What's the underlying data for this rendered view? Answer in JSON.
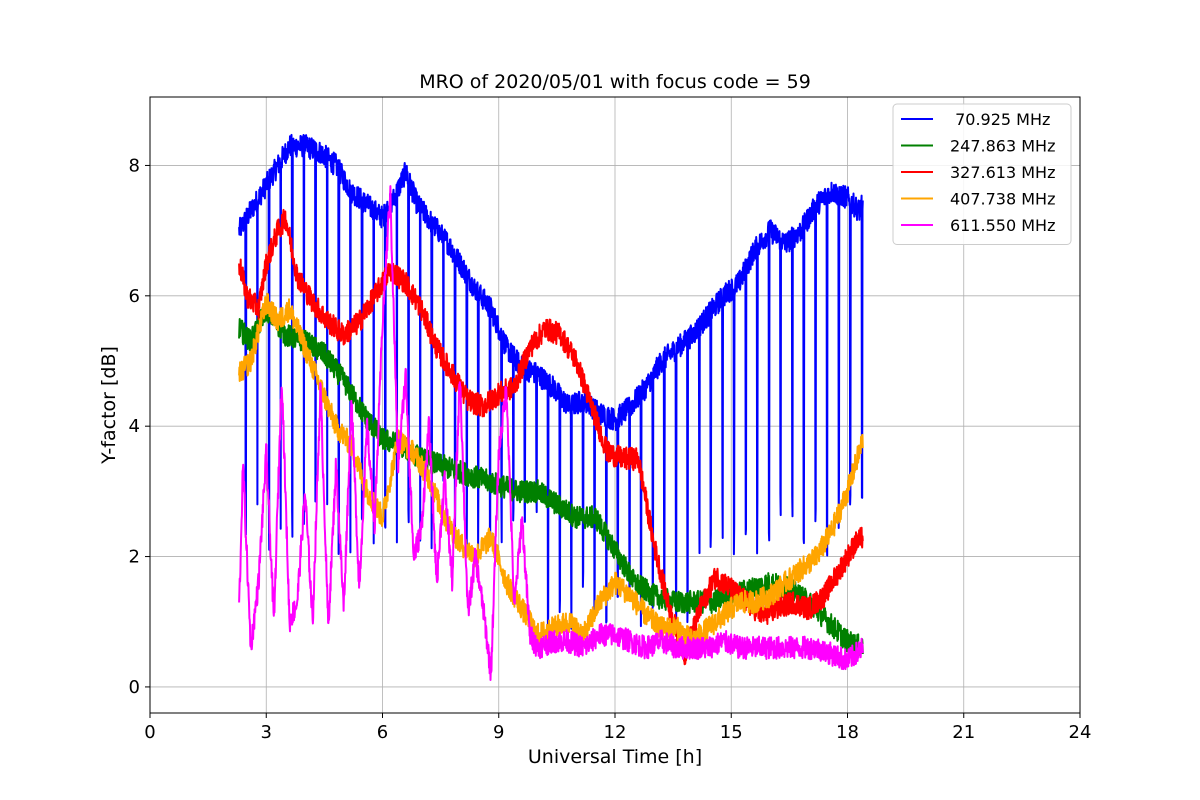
{
  "chart_data": {
    "type": "line",
    "title": "MRO of 2020/05/01 with focus code = 59",
    "xlabel": "Universal Time [h]",
    "ylabel": "Y-factor [dB]",
    "xlim": [
      0,
      24
    ],
    "ylim": [
      -0.4,
      9.05
    ],
    "xticks": [
      0,
      3,
      6,
      9,
      12,
      15,
      18,
      21,
      24
    ],
    "yticks": [
      0,
      2,
      4,
      6,
      8
    ],
    "grid": true,
    "legend_position": "top-right",
    "series": [
      {
        "name": " 70.925 MHz",
        "color": "#0000ff",
        "x": [
          2.3,
          2.6,
          3.0,
          3.3,
          3.6,
          4.0,
          4.4,
          4.8,
          5.2,
          5.6,
          6.0,
          6.3,
          6.6,
          6.9,
          7.3,
          7.7,
          8.0,
          8.4,
          8.8,
          9.2,
          9.6,
          10.0,
          10.4,
          10.8,
          11.2,
          11.6,
          12.0,
          12.4,
          12.8,
          13.2,
          13.6,
          14.0,
          14.4,
          14.8,
          15.2,
          15.6,
          16.0,
          16.4,
          16.8,
          17.2,
          17.6,
          18.0,
          18.3,
          18.4
        ],
        "y": [
          7.0,
          7.3,
          7.7,
          8.0,
          8.3,
          8.3,
          8.2,
          8.0,
          7.6,
          7.4,
          7.2,
          7.5,
          7.9,
          7.4,
          7.1,
          6.8,
          6.5,
          6.1,
          5.8,
          5.2,
          4.9,
          4.8,
          4.6,
          4.3,
          4.4,
          4.2,
          4.1,
          4.3,
          4.6,
          5.0,
          5.2,
          5.4,
          5.7,
          6.0,
          6.2,
          6.7,
          7.0,
          6.8,
          7.0,
          7.4,
          7.6,
          7.5,
          7.3,
          7.4
        ],
        "dips_to": 2.0
      },
      {
        "name": "247.863 MHz",
        "color": "#008000",
        "x": [
          2.3,
          2.6,
          3.0,
          3.5,
          4.0,
          4.5,
          5.0,
          5.5,
          6.0,
          6.5,
          7.0,
          7.5,
          8.0,
          8.5,
          9.0,
          9.5,
          10.0,
          10.5,
          11.0,
          11.5,
          12.0,
          12.5,
          13.0,
          13.5,
          14.0,
          14.5,
          15.0,
          15.5,
          16.0,
          16.5,
          17.0,
          17.5,
          18.0,
          18.4
        ],
        "y": [
          5.5,
          5.3,
          5.8,
          5.4,
          5.3,
          5.1,
          4.7,
          4.2,
          3.8,
          3.7,
          3.5,
          3.4,
          3.3,
          3.2,
          3.1,
          3.0,
          3.0,
          2.8,
          2.6,
          2.6,
          2.1,
          1.6,
          1.4,
          1.3,
          1.3,
          1.3,
          1.4,
          1.5,
          1.6,
          1.5,
          1.3,
          1.0,
          0.7,
          0.6
        ]
      },
      {
        "name": "327.613 MHz",
        "color": "#ff0000",
        "x": [
          2.3,
          2.5,
          2.8,
          3.0,
          3.3,
          3.5,
          3.8,
          4.2,
          4.6,
          5.0,
          5.4,
          5.8,
          6.2,
          6.6,
          7.0,
          7.4,
          7.8,
          8.2,
          8.6,
          9.0,
          9.4,
          9.8,
          10.2,
          10.6,
          11.0,
          11.4,
          11.8,
          12.2,
          12.6,
          13.0,
          13.4,
          13.8,
          14.2,
          14.6,
          15.0,
          15.4,
          15.8,
          16.2,
          16.6,
          17.0,
          17.4,
          17.8,
          18.2,
          18.4
        ],
        "y": [
          6.5,
          6.0,
          5.8,
          6.5,
          7.0,
          7.2,
          6.3,
          5.9,
          5.6,
          5.4,
          5.6,
          6.0,
          6.4,
          6.2,
          5.8,
          5.2,
          4.8,
          4.4,
          4.3,
          4.5,
          4.6,
          5.2,
          5.5,
          5.4,
          5.0,
          4.3,
          3.6,
          3.5,
          3.5,
          2.2,
          1.2,
          0.5,
          1.2,
          1.7,
          1.5,
          1.3,
          1.1,
          1.2,
          1.3,
          1.2,
          1.4,
          1.8,
          2.2,
          2.3
        ]
      },
      {
        "name": "407.738 MHz",
        "color": "#ffa500",
        "x": [
          2.3,
          2.6,
          3.0,
          3.3,
          3.6,
          4.0,
          4.4,
          4.8,
          5.2,
          5.6,
          6.0,
          6.4,
          6.8,
          7.2,
          7.6,
          8.0,
          8.4,
          8.8,
          9.2,
          9.6,
          10.0,
          10.4,
          10.8,
          11.2,
          11.6,
          12.0,
          12.4,
          12.8,
          13.2,
          13.6,
          14.0,
          14.4,
          14.8,
          15.2,
          15.6,
          16.0,
          16.4,
          16.8,
          17.2,
          17.6,
          18.0,
          18.3,
          18.4
        ],
        "y": [
          4.8,
          5.0,
          5.9,
          5.6,
          5.8,
          5.2,
          4.6,
          4.0,
          3.7,
          3.0,
          2.6,
          3.8,
          3.6,
          3.2,
          2.6,
          2.2,
          2.0,
          2.3,
          1.6,
          1.2,
          0.8,
          0.9,
          1.0,
          0.8,
          1.3,
          1.6,
          1.4,
          1.1,
          0.9,
          0.9,
          0.7,
          0.9,
          1.1,
          1.3,
          1.3,
          1.4,
          1.6,
          1.8,
          2.0,
          2.4,
          3.0,
          3.6,
          3.8
        ]
      },
      {
        "name": "611.550 MHz",
        "color": "#ff00ff",
        "x": [
          2.3,
          2.4,
          2.6,
          2.8,
          3.0,
          3.2,
          3.4,
          3.6,
          3.8,
          4.0,
          4.2,
          4.4,
          4.6,
          4.8,
          5.0,
          5.2,
          5.4,
          5.6,
          5.8,
          6.0,
          6.2,
          6.4,
          6.6,
          6.8,
          7.0,
          7.2,
          7.4,
          7.6,
          7.8,
          8.0,
          8.2,
          8.4,
          8.6,
          8.8,
          9.0,
          9.2,
          9.4,
          9.6,
          9.8,
          10.0,
          10.4,
          10.8,
          11.2,
          11.6,
          12.0,
          12.4,
          12.8,
          13.2,
          13.6,
          14.0,
          14.4,
          14.8,
          15.2,
          15.6,
          16.0,
          16.4,
          16.8,
          17.2,
          17.6,
          18.0,
          18.4
        ],
        "y": [
          1.2,
          3.4,
          0.6,
          1.6,
          3.6,
          1.0,
          4.8,
          1.0,
          1.3,
          3.0,
          1.0,
          4.6,
          0.9,
          3.4,
          1.2,
          4.4,
          1.5,
          4.0,
          2.5,
          5.6,
          7.6,
          3.4,
          4.8,
          2.0,
          2.4,
          4.0,
          1.6,
          3.2,
          1.6,
          4.8,
          1.1,
          2.0,
          1.2,
          0.2,
          3.6,
          4.6,
          1.2,
          2.6,
          0.8,
          0.6,
          0.7,
          0.7,
          0.6,
          0.8,
          0.8,
          0.7,
          0.6,
          0.7,
          0.6,
          0.6,
          0.6,
          0.7,
          0.6,
          0.6,
          0.6,
          0.6,
          0.6,
          0.6,
          0.5,
          0.4,
          0.6
        ]
      }
    ]
  }
}
